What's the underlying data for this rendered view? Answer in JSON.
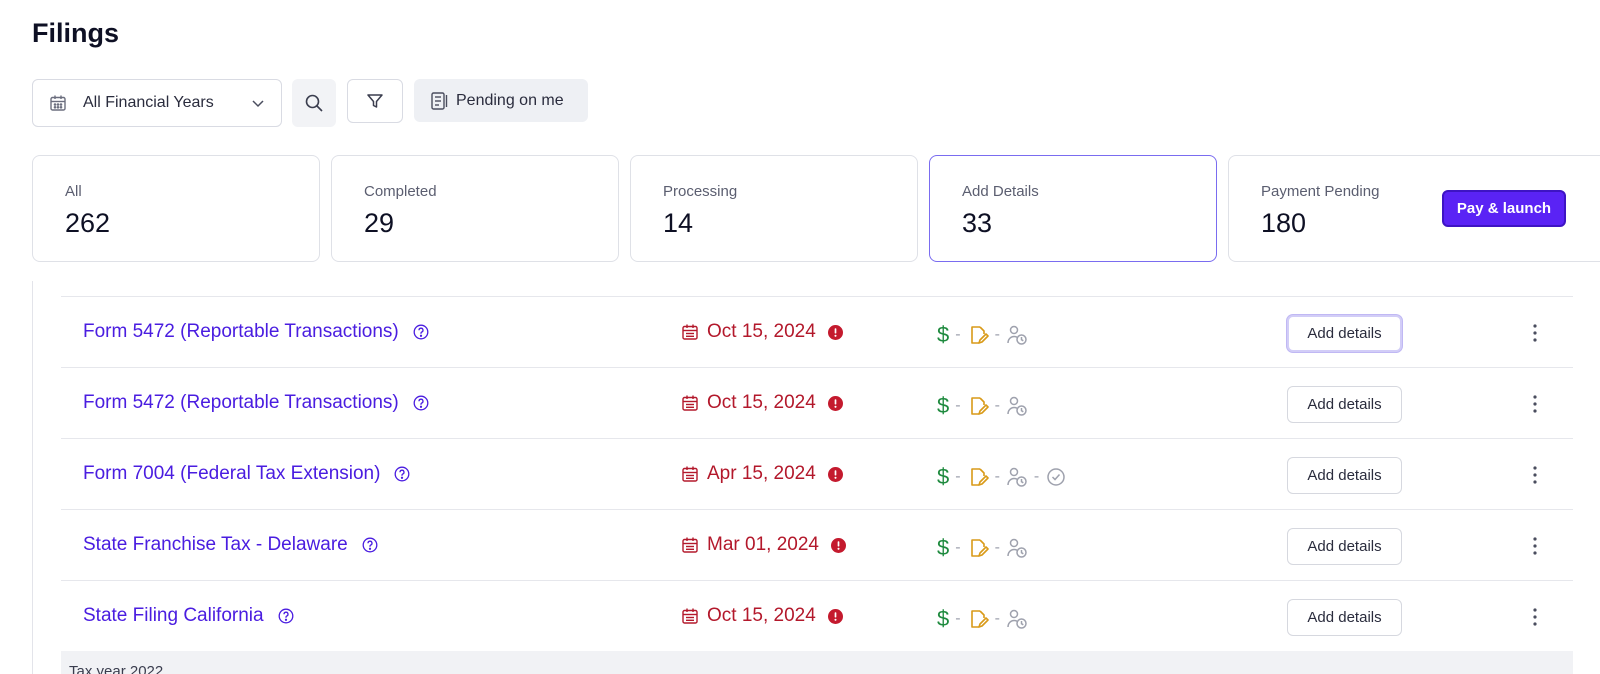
{
  "page": {
    "title": "Filings"
  },
  "toolbar": {
    "year_select": "All Financial Years",
    "pending_label": "Pending on me"
  },
  "stats": [
    {
      "label": "All",
      "value": "262"
    },
    {
      "label": "Completed",
      "value": "29"
    },
    {
      "label": "Processing",
      "value": "14"
    },
    {
      "label": "Add Details",
      "value": "33",
      "active": true
    },
    {
      "label": "Payment Pending",
      "value": "180"
    }
  ],
  "pay_button": "Pay & launch",
  "rows": [
    {
      "name": "Form 5472 (Reportable Transactions)",
      "date": "Oct 15, 2024",
      "action": "Add details",
      "extra_check": false
    },
    {
      "name": "Form 5472 (Reportable Transactions)",
      "date": "Oct 15, 2024",
      "action": "Add details",
      "extra_check": false
    },
    {
      "name": "Form 7004 (Federal Tax Extension)",
      "date": "Apr 15, 2024",
      "action": "Add details",
      "extra_check": true
    },
    {
      "name": "State Franchise Tax - Delaware",
      "date": "Mar 01, 2024",
      "action": "Add details",
      "extra_check": false
    },
    {
      "name": "State Filing California",
      "date": "Oct 15, 2024",
      "action": "Add details",
      "extra_check": false
    }
  ],
  "status_symbols": {
    "dollar": "$",
    "dash": "-"
  },
  "group_header": "Tax year 2022",
  "colors": {
    "accent": "#5a23f5",
    "link": "#4a1de0",
    "overdue": "#b3182b",
    "paid": "#1e8a3e",
    "pending_doc": "#d99a18"
  },
  "icons": [
    "calendar-icon",
    "chevron-down-icon",
    "search-icon",
    "filter-icon",
    "checklist-icon",
    "help-icon",
    "alert-icon",
    "document-edit-icon",
    "user-clock-icon",
    "check-circle-icon",
    "more-vertical-icon"
  ]
}
